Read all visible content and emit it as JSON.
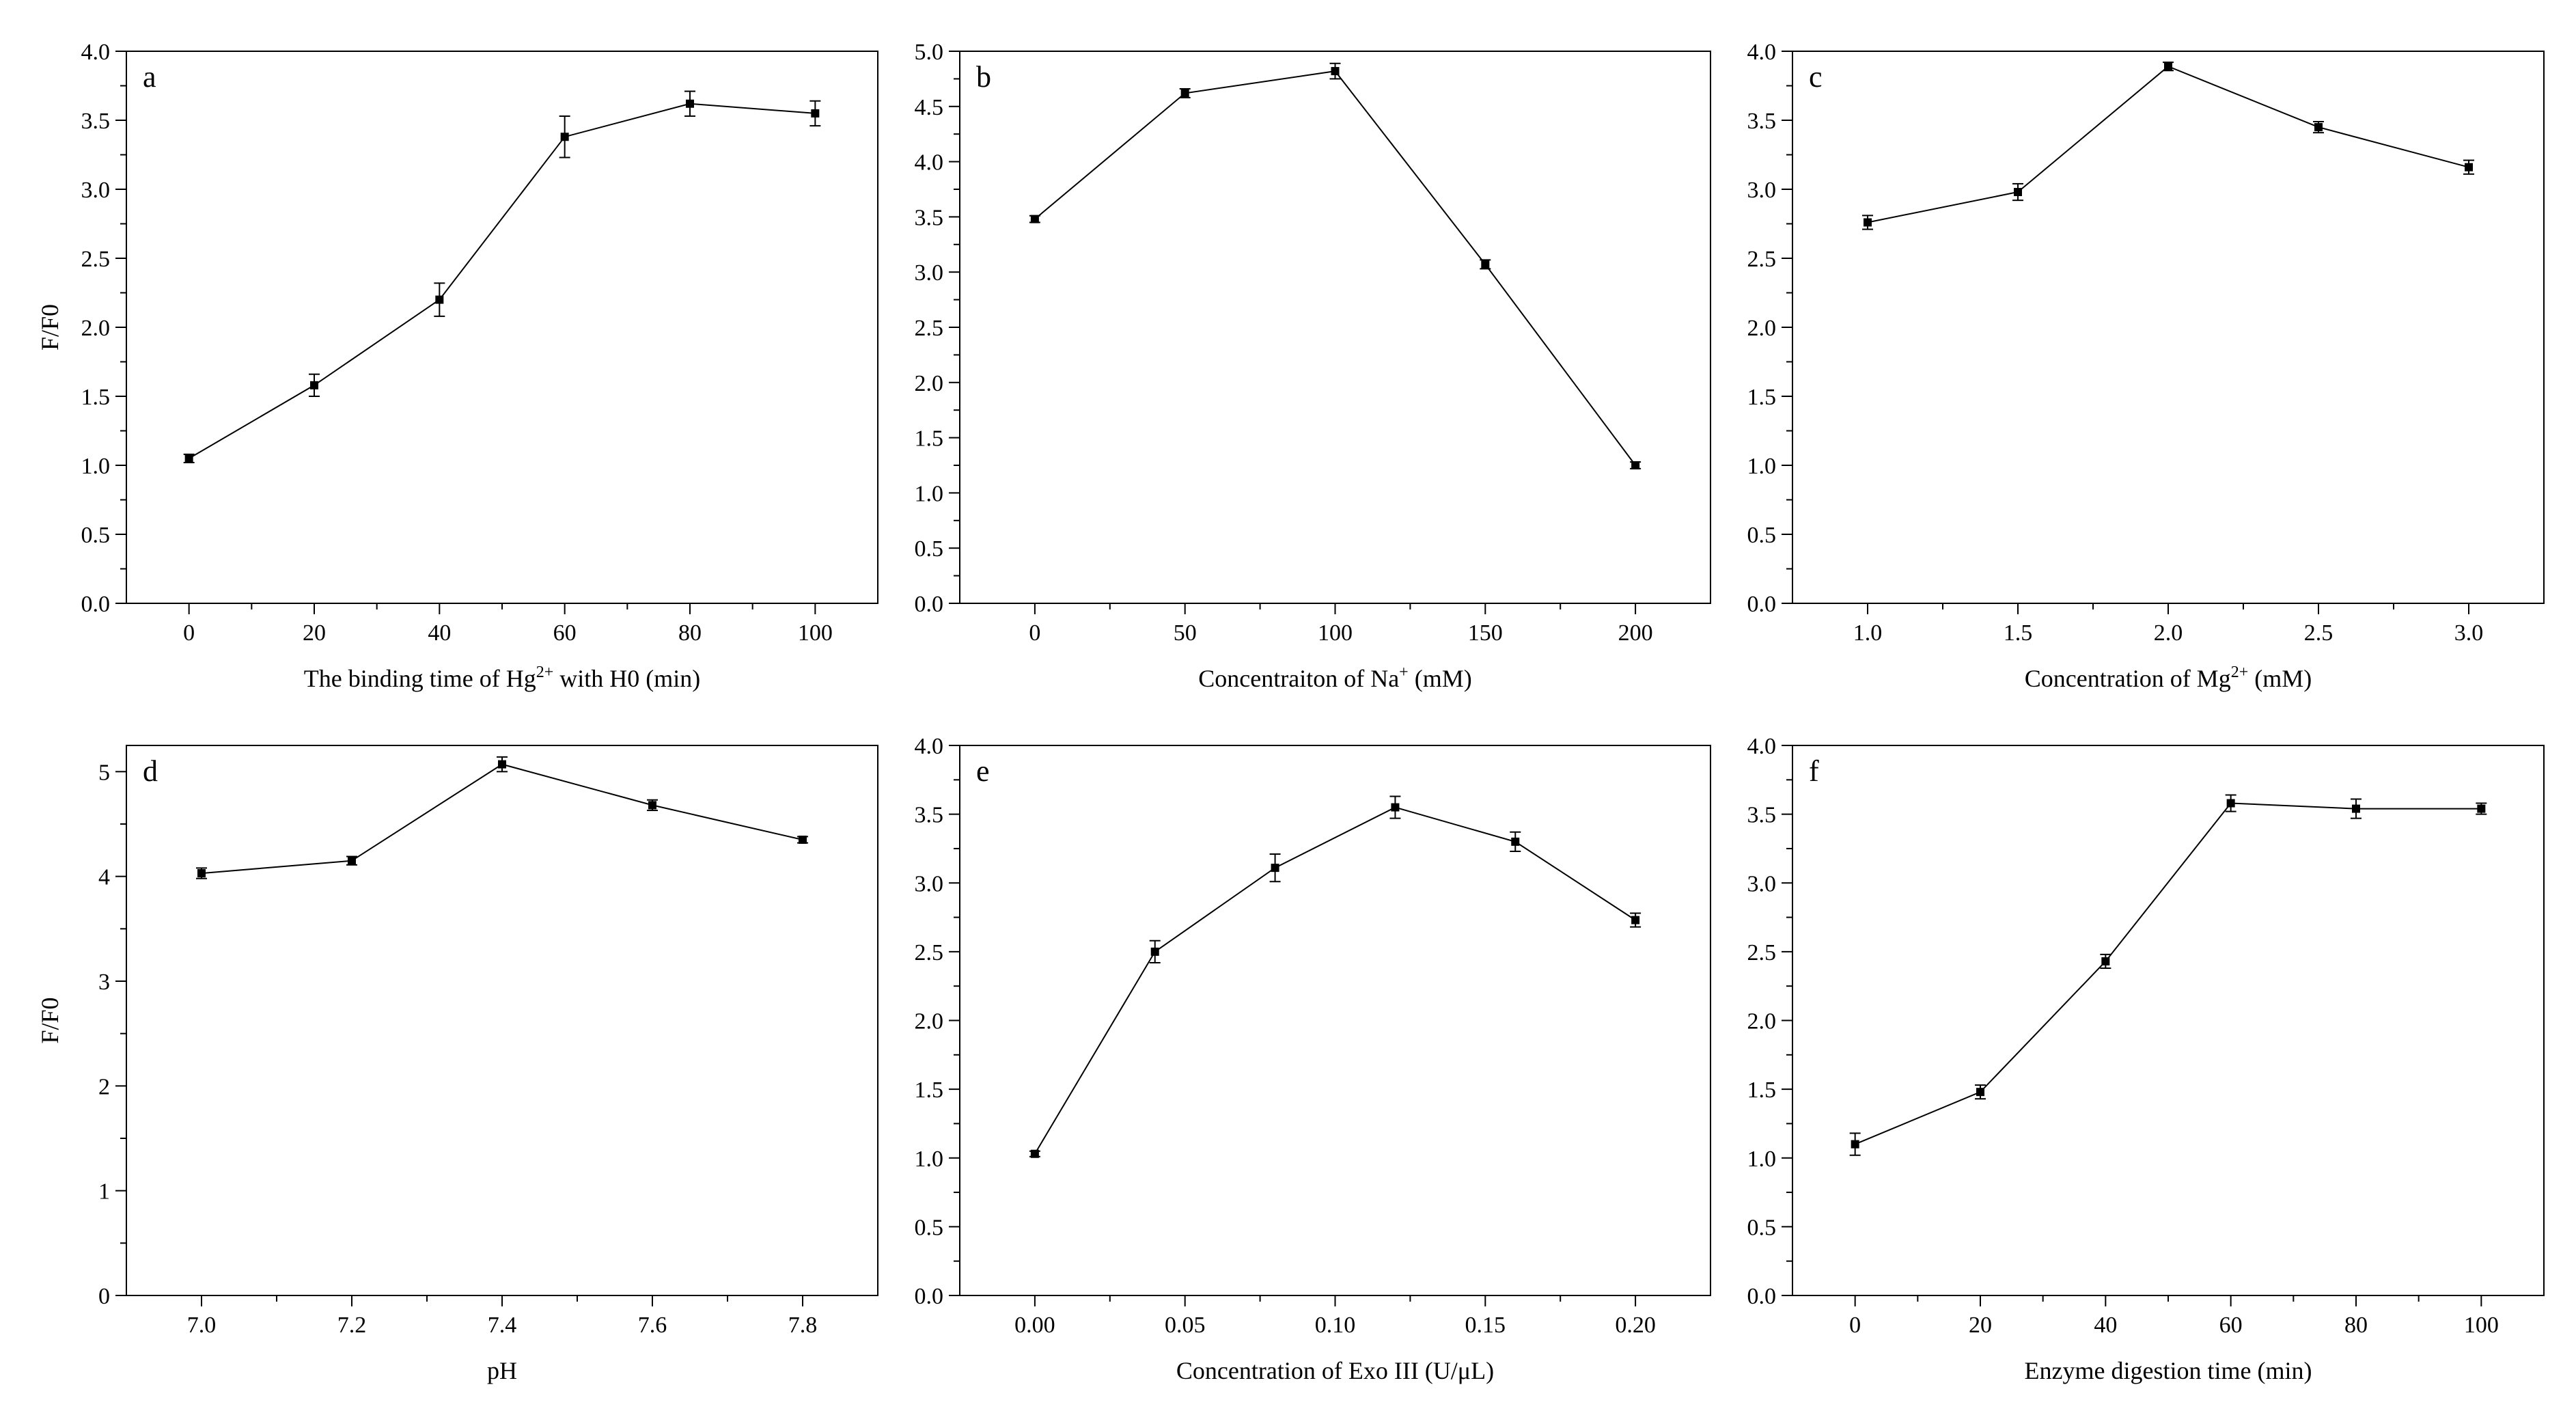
{
  "chart_data": [
    {
      "panel": "a",
      "type": "line",
      "x": [
        0,
        20,
        40,
        60,
        80,
        100
      ],
      "y": [
        1.05,
        1.58,
        2.2,
        3.38,
        3.62,
        3.55
      ],
      "err": [
        0.03,
        0.08,
        0.12,
        0.15,
        0.09,
        0.09
      ],
      "xlim": [
        -10,
        110
      ],
      "ylim": [
        0,
        4.0
      ],
      "xticks": [
        0,
        20,
        40,
        60,
        80,
        100
      ],
      "yticks": [
        0,
        0.5,
        1.0,
        1.5,
        2.0,
        2.5,
        3.0,
        3.5,
        4.0
      ],
      "xdec": 0,
      "ydec": 1,
      "xlabel": {
        "pre": "The binding time of Hg",
        "sup": "2+",
        "post": " with H0 (min)"
      },
      "ylabel": "F/F0"
    },
    {
      "panel": "b",
      "type": "line",
      "x": [
        0,
        50,
        100,
        150,
        200
      ],
      "y": [
        3.48,
        4.62,
        4.82,
        3.07,
        1.25
      ],
      "err": [
        0.03,
        0.04,
        0.07,
        0.04,
        0.03
      ],
      "xlim": [
        -25,
        225
      ],
      "ylim": [
        0,
        5.0
      ],
      "xticks": [
        0,
        50,
        100,
        150,
        200
      ],
      "yticks": [
        0,
        0.5,
        1.0,
        1.5,
        2.0,
        2.5,
        3.0,
        3.5,
        4.0,
        4.5,
        5.0
      ],
      "xdec": 0,
      "ydec": 1,
      "xlabel": {
        "pre": "Concentraiton of Na",
        "sup": "+",
        "post": " (mM)"
      },
      "ylabel": ""
    },
    {
      "panel": "c",
      "type": "line",
      "x": [
        1.0,
        1.5,
        2.0,
        2.5,
        3.0
      ],
      "y": [
        2.76,
        2.98,
        3.89,
        3.45,
        3.16
      ],
      "err": [
        0.05,
        0.06,
        0.03,
        0.04,
        0.05
      ],
      "xlim": [
        0.75,
        3.25
      ],
      "ylim": [
        0,
        4.0
      ],
      "xticks": [
        1.0,
        1.5,
        2.0,
        2.5,
        3.0
      ],
      "yticks": [
        0,
        0.5,
        1.0,
        1.5,
        2.0,
        2.5,
        3.0,
        3.5,
        4.0
      ],
      "xdec": 1,
      "ydec": 1,
      "xlabel": {
        "pre": "Concentration of Mg",
        "sup": "2+",
        "post": " (mM)"
      },
      "ylabel": ""
    },
    {
      "panel": "d",
      "type": "line",
      "x": [
        7.0,
        7.2,
        7.4,
        7.6,
        7.8
      ],
      "y": [
        4.03,
        4.15,
        5.07,
        4.68,
        4.35
      ],
      "err": [
        0.05,
        0.04,
        0.07,
        0.05,
        0.03
      ],
      "xlim": [
        6.9,
        7.9
      ],
      "ylim": [
        0,
        5.25
      ],
      "xticks": [
        7.0,
        7.2,
        7.4,
        7.6,
        7.8
      ],
      "yticks": [
        0,
        1,
        2,
        3,
        4,
        5
      ],
      "xdec": 1,
      "ydec": 0,
      "xlabel": {
        "pre": "pH",
        "sup": "",
        "post": ""
      },
      "ylabel": "F/F0"
    },
    {
      "panel": "e",
      "type": "line",
      "x": [
        0.0,
        0.04,
        0.08,
        0.12,
        0.16,
        0.2
      ],
      "y": [
        1.03,
        2.5,
        3.11,
        3.55,
        3.3,
        2.73
      ],
      "err": [
        0.02,
        0.08,
        0.1,
        0.08,
        0.07,
        0.05
      ],
      "xlim": [
        -0.025,
        0.225
      ],
      "ylim": [
        0,
        4.0
      ],
      "xticks": [
        0.0,
        0.05,
        0.1,
        0.15,
        0.2
      ],
      "yticks": [
        0,
        0.5,
        1.0,
        1.5,
        2.0,
        2.5,
        3.0,
        3.5,
        4.0
      ],
      "xdec": 2,
      "ydec": 1,
      "xlabel": {
        "pre": "Concentration of Exo III (U/μL)",
        "sup": "",
        "post": ""
      },
      "ylabel": ""
    },
    {
      "panel": "f",
      "type": "line",
      "x": [
        0,
        20,
        40,
        60,
        80,
        100
      ],
      "y": [
        1.1,
        1.48,
        2.43,
        3.58,
        3.54,
        3.54
      ],
      "err": [
        0.08,
        0.05,
        0.05,
        0.06,
        0.07,
        0.04
      ],
      "xlim": [
        -10,
        110
      ],
      "ylim": [
        0,
        4.0
      ],
      "xticks": [
        0,
        20,
        40,
        60,
        80,
        100
      ],
      "yticks": [
        0,
        0.5,
        1.0,
        1.5,
        2.0,
        2.5,
        3.0,
        3.5,
        4.0
      ],
      "xdec": 0,
      "ydec": 1,
      "xlabel": {
        "pre": "Enzyme digestion time (min)",
        "sup": "",
        "post": ""
      },
      "ylabel": ""
    }
  ]
}
